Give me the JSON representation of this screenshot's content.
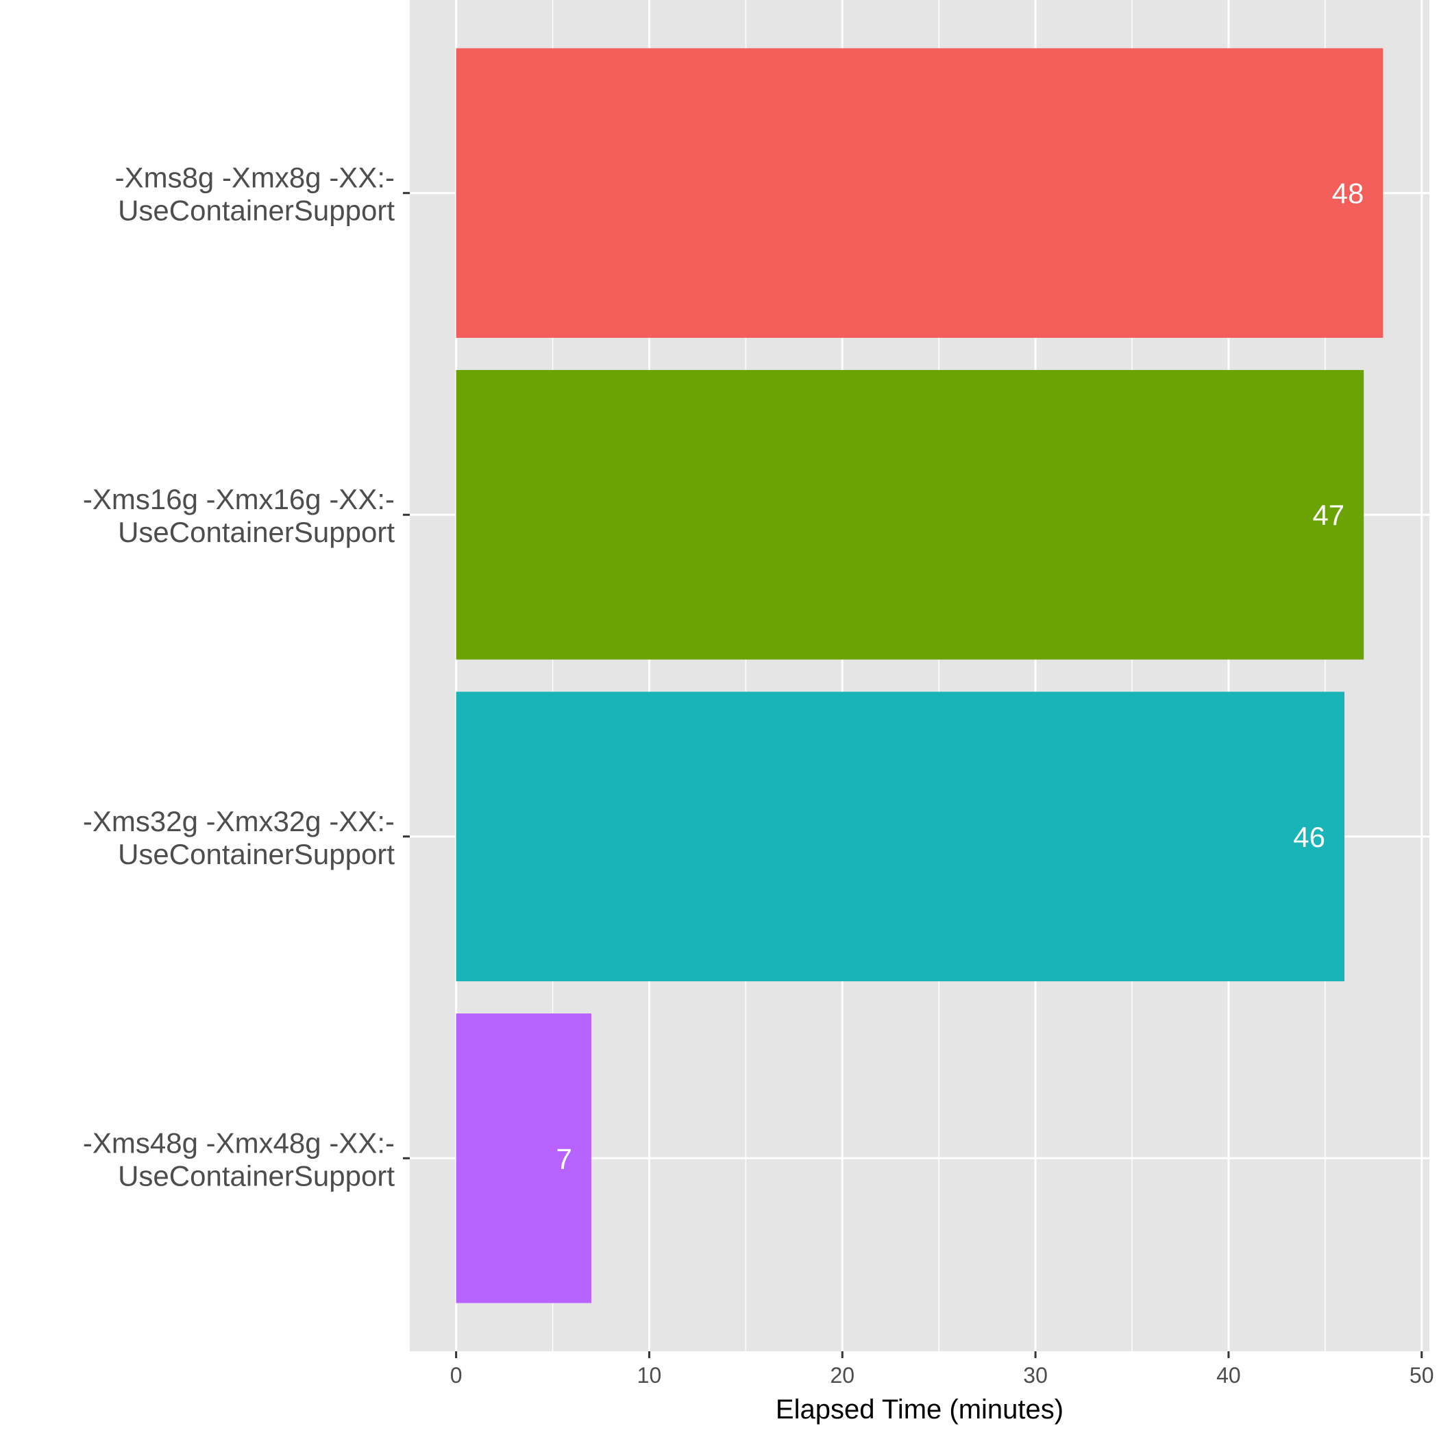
{
  "chart_data": {
    "type": "bar",
    "orientation": "horizontal",
    "categories": [
      [
        "-Xms8g -Xmx8g -XX:-",
        "UseContainerSupport"
      ],
      [
        "-Xms16g -Xmx16g -XX:-",
        "UseContainerSupport"
      ],
      [
        "-Xms32g -Xmx32g -XX:-",
        "UseContainerSupport"
      ],
      [
        "-Xms48g -Xmx48g -XX:-",
        "UseContainerSupport"
      ]
    ],
    "values": [
      48,
      47,
      46,
      7
    ],
    "data_labels": [
      "48",
      "47",
      "46",
      "7"
    ],
    "colors": [
      "#F35E5A",
      "#6BA304",
      "#18B4B8",
      "#B863FF"
    ],
    "xlabel": "Elapsed Time (minutes)",
    "ylabel": "",
    "title": "",
    "xlim": [
      -2.4,
      50.4
    ],
    "x_ticks": [
      0,
      10,
      20,
      30,
      40,
      50
    ],
    "x_tick_labels": [
      "0",
      "10",
      "20",
      "30",
      "40",
      "50"
    ],
    "x_minor_ticks": [
      5,
      15,
      25,
      35,
      45
    ],
    "grid": true,
    "legend": "none",
    "panel_background": "#E5E5E5",
    "gridline_color": "#FFFFFF"
  }
}
